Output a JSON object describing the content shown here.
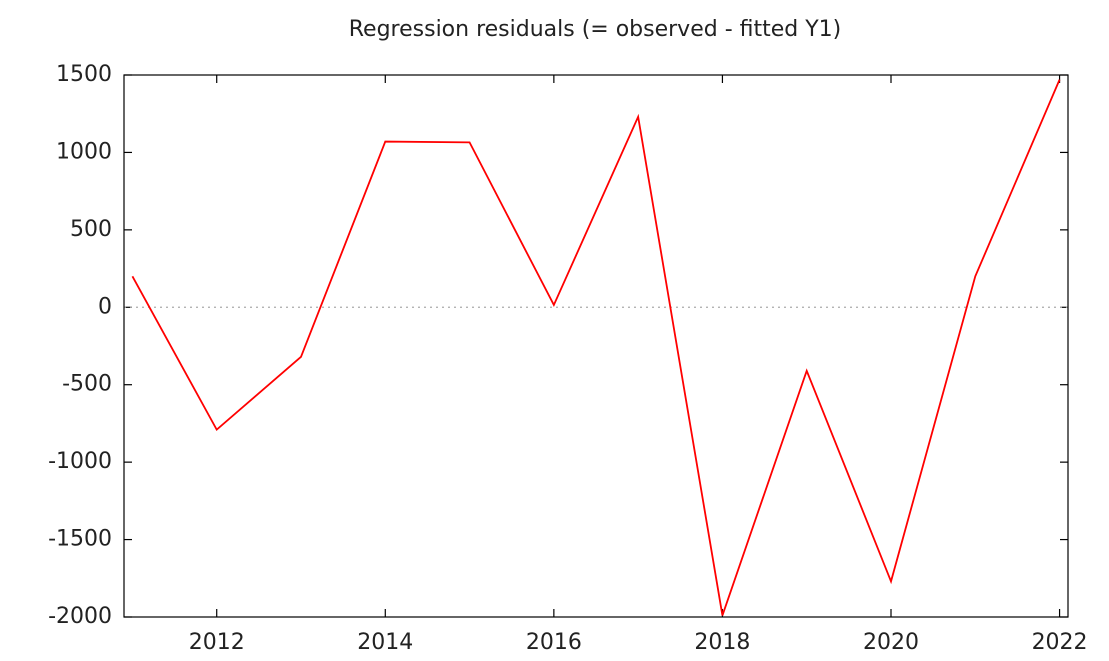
{
  "chart_data": {
    "type": "line",
    "title": "Regression residuals (= observed - fitted Y1)",
    "x": [
      2011,
      2012,
      2013,
      2014,
      2015,
      2016,
      2017,
      2018,
      2019,
      2020,
      2021,
      2022
    ],
    "series": [
      {
        "color": "#ff0000",
        "values": [
          200,
          -790,
          -320,
          1070,
          1065,
          15,
          1230,
          -1990,
          -410,
          -1770,
          200,
          1470
        ]
      }
    ],
    "xlim": [
      2010.9,
      2022.1
    ],
    "xticks": [
      2012,
      2014,
      2016,
      2018,
      2020,
      2022
    ],
    "ylim": [
      -2000,
      1500
    ],
    "yticks": [
      -2000,
      -1500,
      -1000,
      -500,
      0,
      500,
      1000,
      1500
    ],
    "zero_line": true
  }
}
